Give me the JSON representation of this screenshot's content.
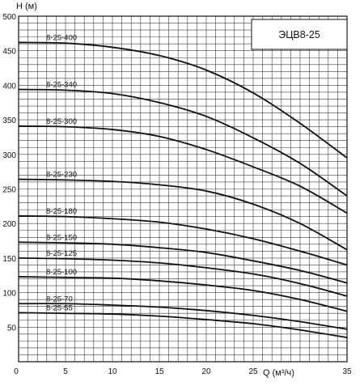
{
  "chart_data": {
    "type": "line",
    "title": "ЭЦВ8-25",
    "xlabel": "Q (м³/ч)",
    "ylabel": "H (м)",
    "xlim": [
      0,
      35
    ],
    "ylim": [
      0,
      500
    ],
    "xticks": [
      "0",
      "5",
      "10",
      "15",
      "20",
      "25",
      "35"
    ],
    "yticks": [
      "50",
      "100",
      "150",
      "200",
      "250",
      "300",
      "350",
      "400",
      "450",
      "500"
    ],
    "grid": true,
    "x": [
      0,
      5,
      10,
      15,
      20,
      25,
      30,
      35
    ],
    "series": [
      {
        "name": "8-25-400",
        "values": [
          462,
          461,
          455,
          443,
          422,
          389,
          345,
          295
        ]
      },
      {
        "name": "8-25-340",
        "values": [
          394,
          393,
          388,
          375,
          355,
          324,
          287,
          240
        ]
      },
      {
        "name": "8-25-300",
        "values": [
          341,
          340,
          336,
          326,
          307,
          282,
          254,
          215
        ]
      },
      {
        "name": "8-25-230",
        "values": [
          264,
          263,
          261,
          256,
          247,
          228,
          200,
          162
        ]
      },
      {
        "name": "8-25-180",
        "values": [
          211,
          210,
          207,
          202,
          192,
          178,
          160,
          140
        ]
      },
      {
        "name": "8-25-150",
        "values": [
          173,
          172,
          170,
          165,
          158,
          146,
          132,
          114
        ]
      },
      {
        "name": "8-25-125",
        "values": [
          150,
          149,
          147,
          143,
          136,
          127,
          113,
          95
        ]
      },
      {
        "name": "8-25-100",
        "values": [
          123,
          122,
          121,
          117,
          111,
          103,
          90,
          73
        ]
      },
      {
        "name": "8-25-70",
        "values": [
          84,
          84,
          82,
          79,
          74,
          67,
          58,
          47
        ]
      },
      {
        "name": "8-25-55",
        "values": [
          71,
          70,
          69,
          66,
          61,
          55,
          46,
          35
        ]
      }
    ]
  },
  "colors": {
    "line": "#111111",
    "grid": "#3a3a3a",
    "background": "#ffffff"
  }
}
